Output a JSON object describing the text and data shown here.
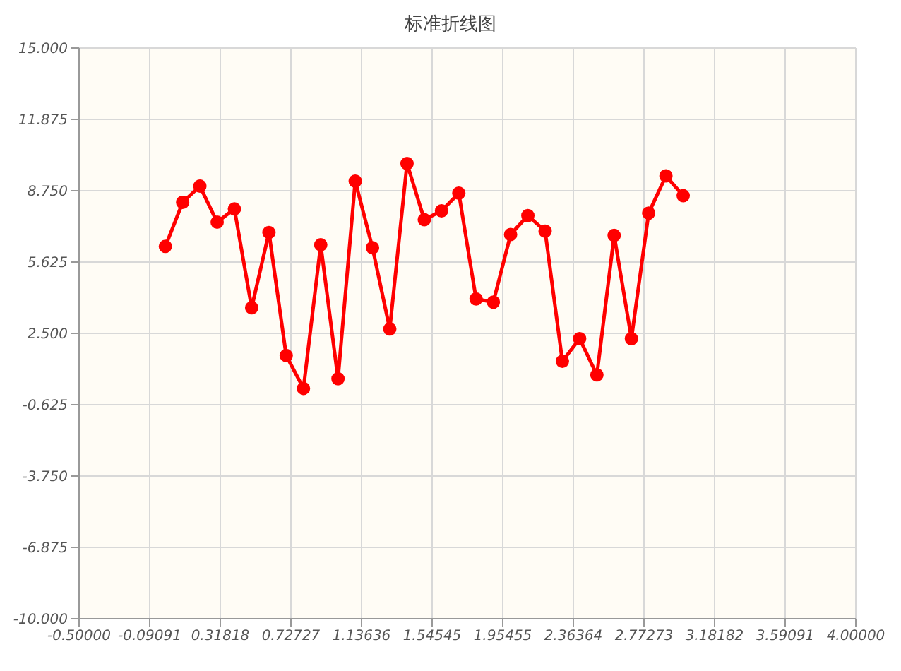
{
  "chart_data": {
    "type": "line",
    "title": "标准折线图",
    "x": [
      0,
      0.1,
      0.2,
      0.3,
      0.4,
      0.5,
      0.6,
      0.7,
      0.8,
      0.9,
      1.0,
      1.1,
      1.2,
      1.3,
      1.4,
      1.5,
      1.6,
      1.7,
      1.8,
      1.9,
      2.0,
      2.1,
      2.2,
      2.3,
      2.4,
      2.5,
      2.6,
      2.7,
      2.8,
      2.9,
      3.0
    ],
    "series": [
      {
        "color": "#ff0000",
        "values": [
          6.31,
          8.24,
          8.95,
          7.37,
          7.95,
          3.62,
          6.92,
          1.53,
          0.09,
          6.38,
          0.51,
          9.17,
          6.25,
          2.69,
          9.94,
          7.48,
          7.87,
          8.64,
          4.01,
          3.87,
          6.83,
          7.66,
          6.98,
          1.28,
          2.27,
          0.68,
          6.79,
          2.27,
          7.77,
          9.4,
          8.53
        ]
      }
    ],
    "xlim": [
      -0.5,
      4.0
    ],
    "xticks": [
      {
        "value": -0.5,
        "label": "-0.50000"
      },
      {
        "value": -0.09091,
        "label": "-0.09091"
      },
      {
        "value": 0.31818,
        "label": "0.31818"
      },
      {
        "value": 0.72727,
        "label": "0.72727"
      },
      {
        "value": 1.13636,
        "label": "1.13636"
      },
      {
        "value": 1.54545,
        "label": "1.54545"
      },
      {
        "value": 1.95455,
        "label": "1.95455"
      },
      {
        "value": 2.36364,
        "label": "2.36364"
      },
      {
        "value": 2.77273,
        "label": "2.77273"
      },
      {
        "value": 3.18182,
        "label": "3.18182"
      },
      {
        "value": 3.59091,
        "label": "3.59091"
      },
      {
        "value": 4.0,
        "label": "4.00000"
      }
    ],
    "ylim": [
      -10,
      15
    ],
    "yticks": [
      {
        "value": -10,
        "label": "-10.000"
      },
      {
        "value": -6.875,
        "label": "-6.875"
      },
      {
        "value": -3.75,
        "label": "-3.750"
      },
      {
        "value": -0.625,
        "label": "-0.625"
      },
      {
        "value": 2.5,
        "label": "2.500"
      },
      {
        "value": 5.625,
        "label": "5.625"
      },
      {
        "value": 8.75,
        "label": "8.750"
      },
      {
        "value": 11.875,
        "label": "11.875"
      },
      {
        "value": 15,
        "label": "15.000"
      }
    ],
    "grid": true,
    "marker": "circle",
    "line_style": "solid"
  }
}
